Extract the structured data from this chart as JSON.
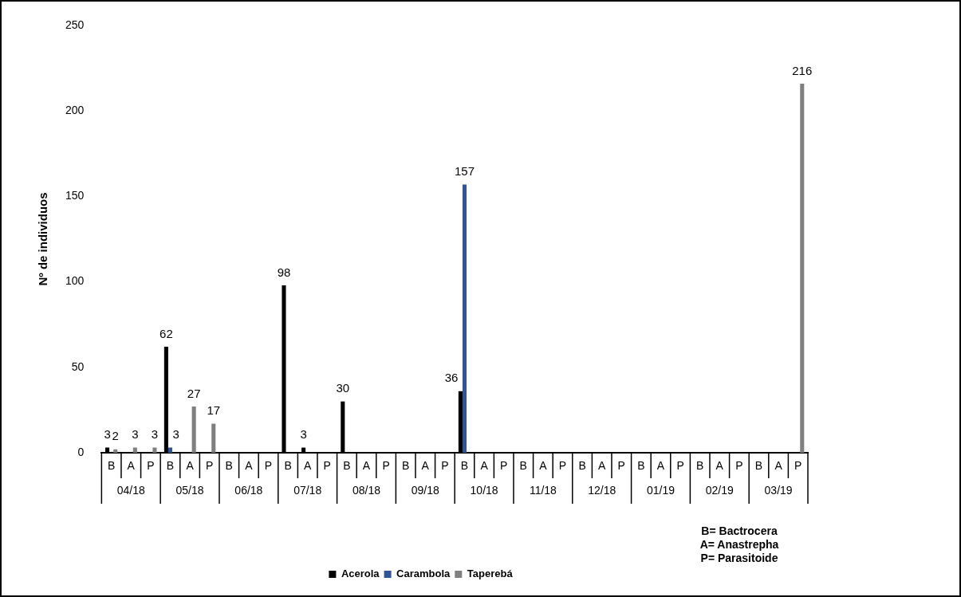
{
  "chart_data": {
    "type": "bar",
    "ylabel": "Nº de individuos",
    "categories": [
      "B",
      "A",
      "P",
      "B",
      "A",
      "P",
      "B",
      "A",
      "P",
      "B",
      "A",
      "P",
      "B",
      "A",
      "P",
      "B",
      "A",
      "P",
      "B",
      "A",
      "P",
      "B",
      "A",
      "P",
      "B",
      "A",
      "P",
      "B",
      "A",
      "P",
      "B",
      "A",
      "P",
      "B",
      "A",
      "P"
    ],
    "series": [
      {
        "name": "Acerola",
        "color": "#000000",
        "values": [
          3,
          null,
          null,
          62,
          null,
          null,
          null,
          null,
          null,
          98,
          3,
          null,
          30,
          null,
          null,
          null,
          null,
          null,
          36,
          null,
          null,
          null,
          null,
          null,
          null,
          null,
          null,
          null,
          null,
          null,
          null,
          null,
          null,
          null,
          null,
          null
        ]
      },
      {
        "name": "Carambola",
        "color": "#2f5597",
        "values": [
          null,
          null,
          null,
          3,
          null,
          null,
          null,
          null,
          null,
          null,
          null,
          null,
          null,
          null,
          null,
          null,
          null,
          null,
          157,
          null,
          null,
          null,
          null,
          null,
          null,
          null,
          null,
          null,
          null,
          null,
          null,
          null,
          null,
          null,
          null,
          null
        ]
      },
      {
        "name": "Taperebá",
        "color": "#7f7f7f",
        "values": [
          2,
          3,
          3,
          null,
          27,
          17,
          null,
          null,
          null,
          null,
          null,
          null,
          null,
          null,
          null,
          null,
          null,
          null,
          null,
          null,
          null,
          null,
          null,
          null,
          null,
          null,
          null,
          null,
          null,
          null,
          null,
          null,
          null,
          null,
          null,
          216
        ]
      }
    ],
    "ylim": [
      0,
      250
    ],
    "yticks": [
      0,
      50,
      100,
      150,
      200,
      250
    ],
    "grid": false,
    "legend": "bottom",
    "data_labels": true,
    "annotations": [
      "04/18",
      "05/18",
      "06/18",
      "07/18",
      "08/18",
      "09/18",
      "10/18",
      "11/18",
      "12/18",
      "01/19",
      "02/19",
      "03/19",
      "B= Bactrocera\nA= Anastrepha\nP= Parasitoide"
    ]
  }
}
